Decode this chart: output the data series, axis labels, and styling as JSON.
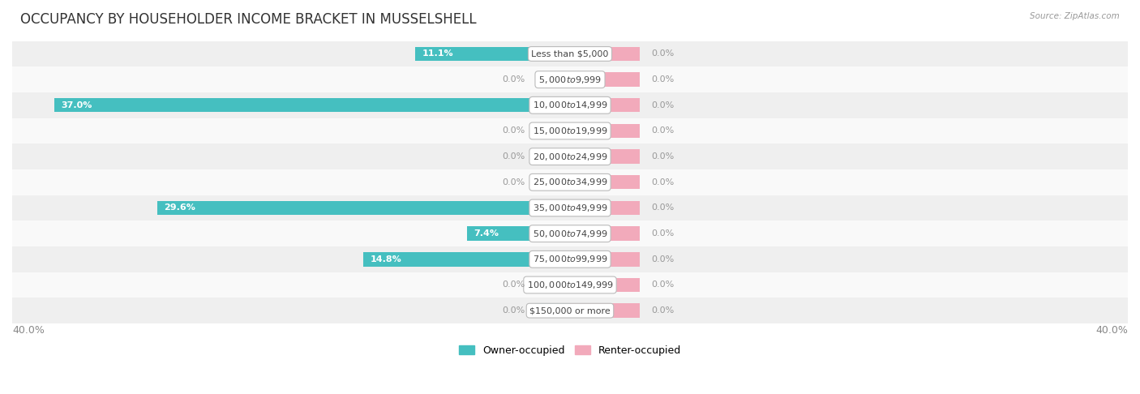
{
  "title": "OCCUPANCY BY HOUSEHOLDER INCOME BRACKET IN MUSSELSHELL",
  "source": "Source: ZipAtlas.com",
  "categories": [
    "Less than $5,000",
    "$5,000 to $9,999",
    "$10,000 to $14,999",
    "$15,000 to $19,999",
    "$20,000 to $24,999",
    "$25,000 to $34,999",
    "$35,000 to $49,999",
    "$50,000 to $74,999",
    "$75,000 to $99,999",
    "$100,000 to $149,999",
    "$150,000 or more"
  ],
  "owner_values": [
    11.1,
    0.0,
    37.0,
    0.0,
    0.0,
    0.0,
    29.6,
    7.4,
    14.8,
    0.0,
    0.0
  ],
  "renter_values": [
    0.0,
    0.0,
    0.0,
    0.0,
    0.0,
    0.0,
    0.0,
    0.0,
    0.0,
    0.0,
    0.0
  ],
  "owner_color": "#45BFC0",
  "owner_color_light": "#8DD8D8",
  "renter_color": "#F2AABB",
  "bg_color_odd": "#efefef",
  "bg_color_even": "#f9f9f9",
  "axis_limit": 40.0,
  "renter_min_display": 5.0,
  "legend_owner": "Owner-occupied",
  "legend_renter": "Renter-occupied",
  "title_fontsize": 12,
  "label_fontsize": 8,
  "category_fontsize": 8,
  "bar_height": 0.55
}
